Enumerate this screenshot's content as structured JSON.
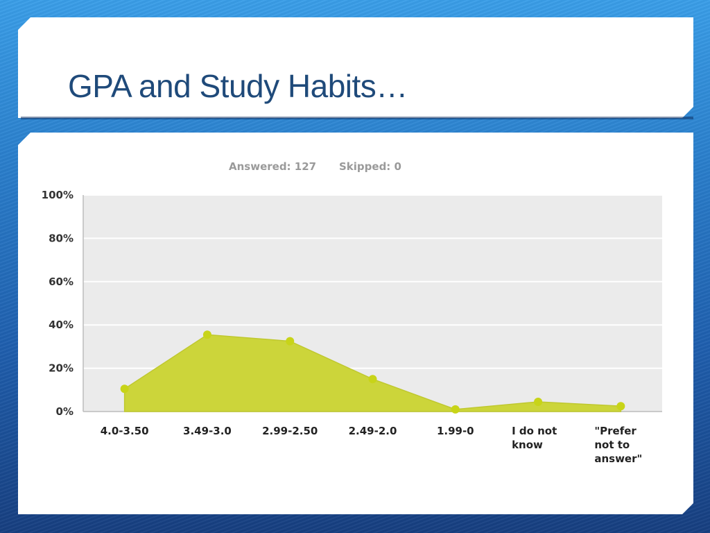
{
  "slide": {
    "title": "GPA and Study Habits…"
  },
  "survey": {
    "answered": "Answered: 127",
    "skipped": "Skipped: 0"
  },
  "colors": {
    "area": "#ccd53a",
    "point": "#c8d418",
    "plot_bg": "#ebebeb",
    "title": "#1f4a7a"
  },
  "chart_data": {
    "type": "area",
    "title": "",
    "xlabel": "",
    "ylabel": "",
    "ylim": [
      0,
      100
    ],
    "yticks": [
      0,
      20,
      40,
      60,
      80,
      100
    ],
    "ytick_labels": [
      "0%",
      "20%",
      "40%",
      "60%",
      "80%",
      "100%"
    ],
    "categories": [
      [
        "4.0-3.50"
      ],
      [
        "3.49-3.0"
      ],
      [
        "2.99-2.50"
      ],
      [
        "2.49-2.0"
      ],
      [
        "1.99-0"
      ],
      [
        "I do not",
        "know"
      ],
      [
        "\"Prefer",
        "not to",
        "answer\""
      ]
    ],
    "values": [
      10.5,
      35.5,
      32.5,
      15,
      1,
      4.5,
      2.5
    ],
    "grid": true
  }
}
